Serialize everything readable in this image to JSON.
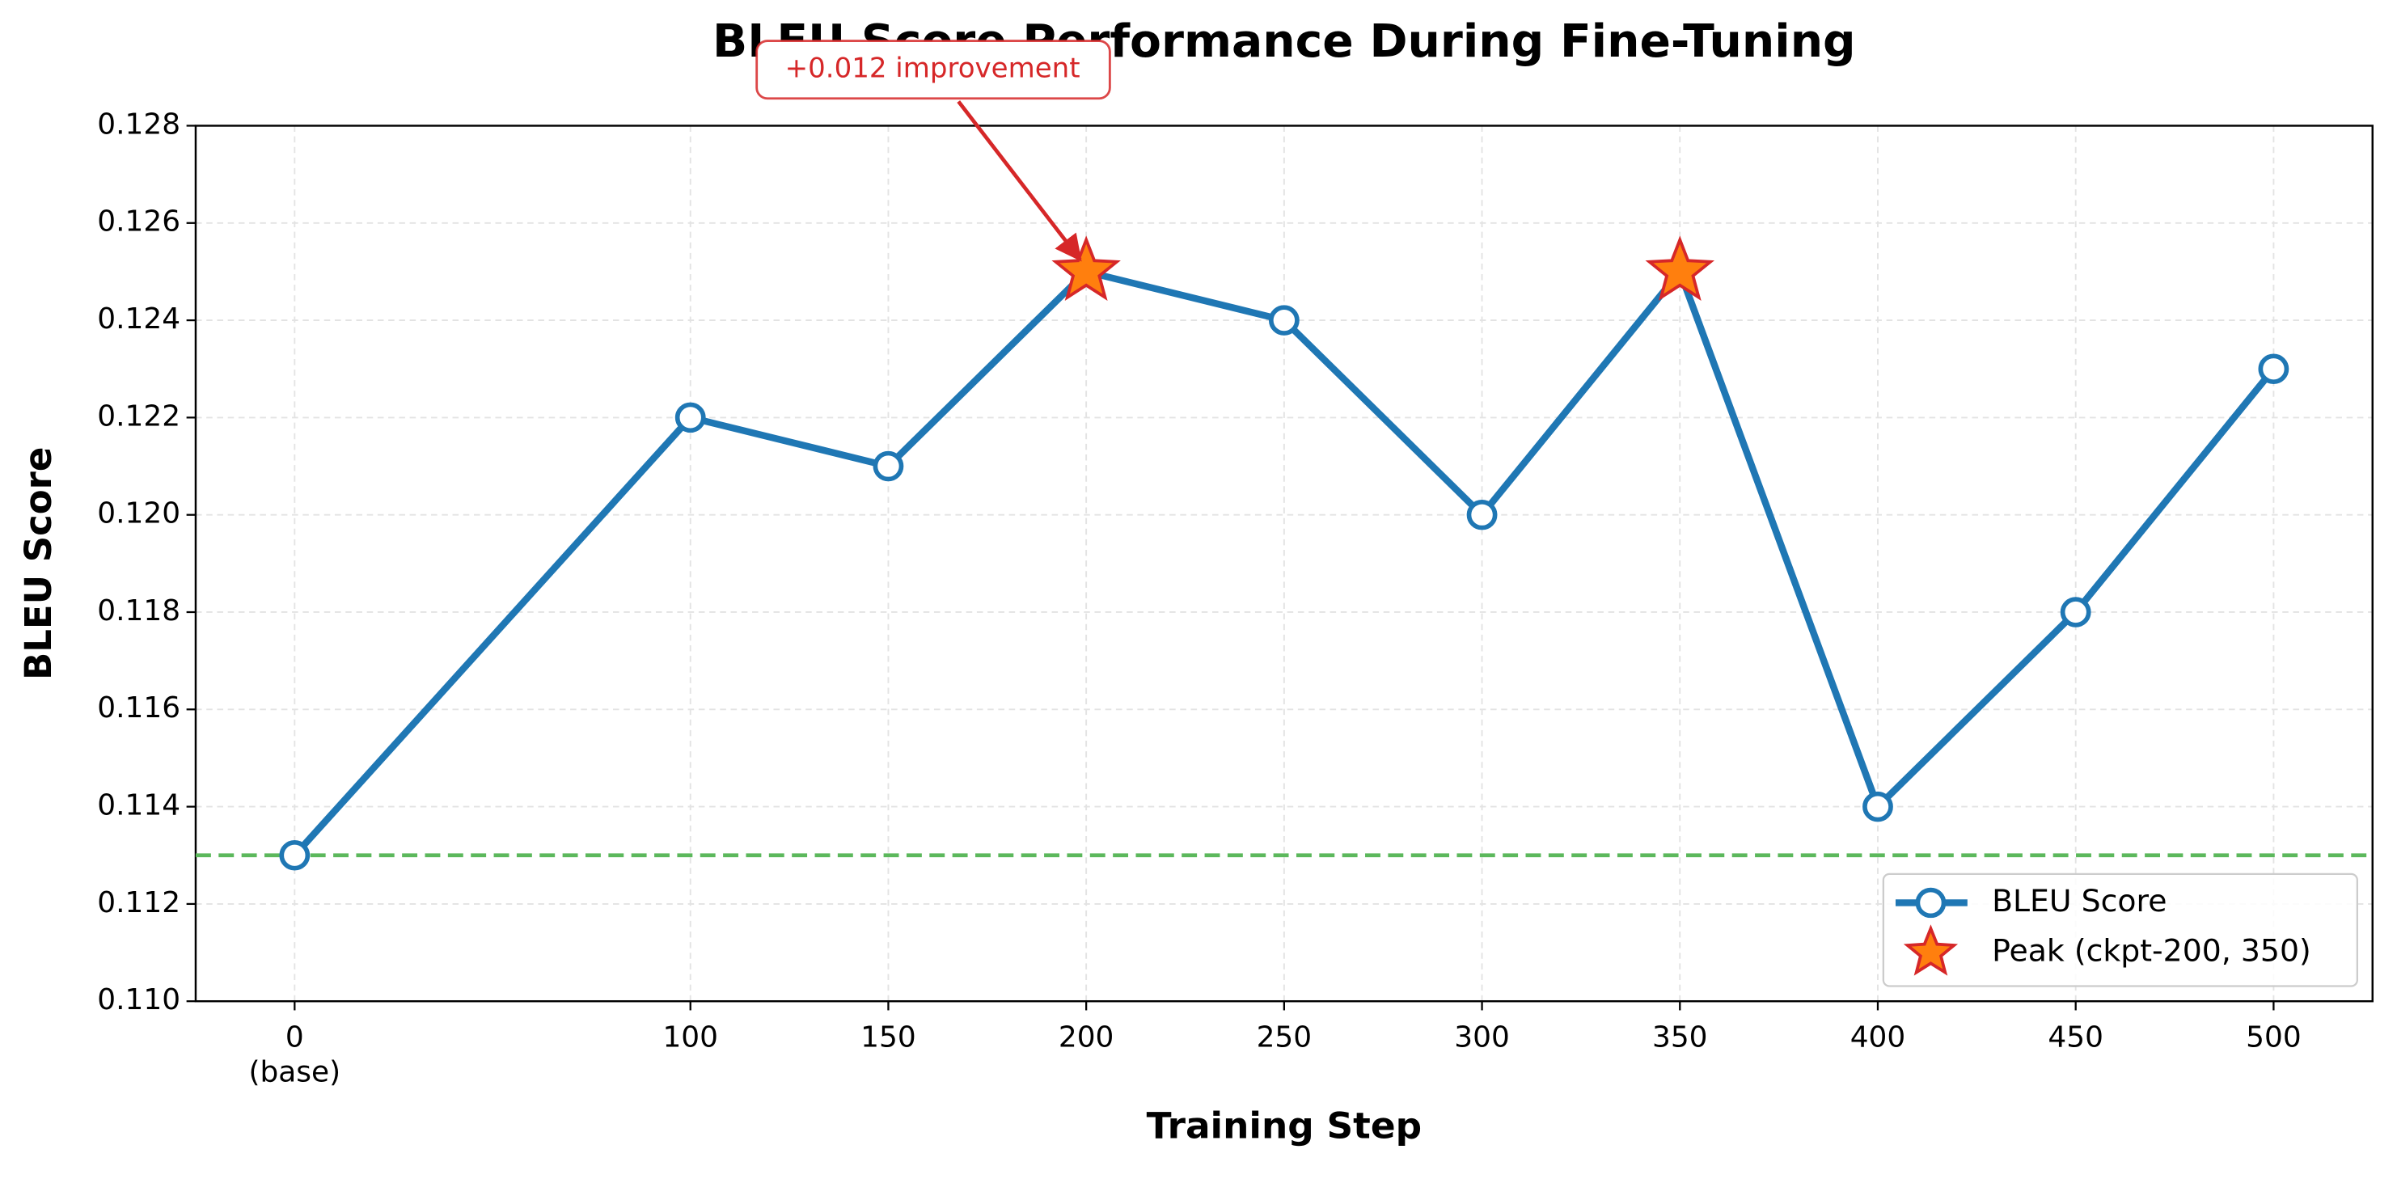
{
  "chart_data": {
    "type": "line",
    "title": "BLEU Score Performance During Fine-Tuning",
    "x_label": "Training Step",
    "y_label": "BLEU Score",
    "xlim": [
      -25,
      525
    ],
    "ylim": [
      0.11,
      0.128
    ],
    "xticks": [
      {
        "value": 0,
        "label": "0\n(base)"
      },
      100,
      150,
      200,
      250,
      300,
      350,
      400,
      450,
      500
    ],
    "yticks": [
      {
        "value": 0.11,
        "label": "0.110"
      },
      0.112,
      0.114,
      0.116,
      0.118,
      {
        "value": 0.12,
        "label": "0.120"
      },
      0.122,
      0.124,
      0.126,
      0.128
    ],
    "grid": true,
    "legend": "lower right",
    "baseline": {
      "value": 0.113,
      "color": "#5cb85c"
    },
    "series": [
      {
        "name": "BLEU Score",
        "color": "#1f77b4",
        "marker": "circle",
        "x": [
          0,
          100,
          150,
          200,
          250,
          300,
          350,
          400,
          450,
          500
        ],
        "values": [
          0.113,
          0.122,
          0.121,
          0.125,
          0.124,
          0.12,
          0.125,
          0.114,
          0.118,
          0.123
        ]
      },
      {
        "name": "Peak (ckpt-200, 350)",
        "color": "#ff7f0e",
        "edge_color": "#d62728",
        "marker": "star",
        "x": [
          200,
          350
        ],
        "values": [
          0.125,
          0.125
        ]
      }
    ],
    "annotation": {
      "text": "+0.012 improvement",
      "x": 200,
      "y": 0.125,
      "color": "#d62728"
    }
  }
}
